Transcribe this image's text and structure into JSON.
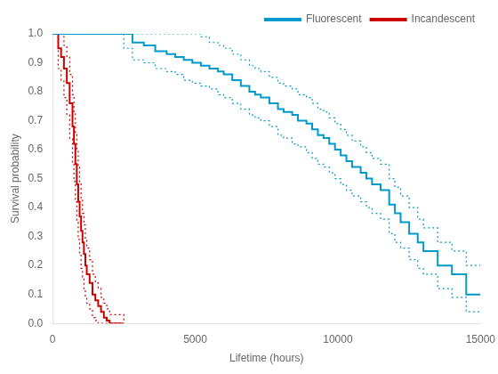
{
  "chart_data": {
    "type": "step",
    "xlabel": "Lifetime (hours)",
    "ylabel": "Survival probability",
    "xlim": [
      0,
      15000
    ],
    "ylim": [
      0,
      1
    ],
    "xticks": [
      0,
      5000,
      10000,
      15000
    ],
    "yticks": [
      {
        "value": 0,
        "label": "0.0"
      },
      0.1,
      0.2,
      0.3,
      0.4,
      0.5,
      0.6,
      0.7,
      0.8,
      0.9,
      {
        "value": 1.0,
        "label": "1.0"
      }
    ],
    "grid": false,
    "legend": "upper right",
    "series": [
      {
        "name": "Fluorescent",
        "color": "#0099CC",
        "x": [
          0,
          2500,
          2800,
          3200,
          3600,
          4000,
          4300,
          4600,
          4900,
          5200,
          5500,
          5800,
          6000,
          6300,
          6600,
          6900,
          7100,
          7300,
          7600,
          7900,
          8100,
          8400,
          8600,
          8900,
          9100,
          9300,
          9500,
          9700,
          9900,
          10100,
          10300,
          10500,
          10800,
          11000,
          11200,
          11500,
          11800,
          12000,
          12200,
          12500,
          12800,
          13000,
          13500,
          14000,
          14500,
          15000
        ],
        "values": [
          1.0,
          1.0,
          0.97,
          0.96,
          0.94,
          0.93,
          0.92,
          0.91,
          0.9,
          0.89,
          0.88,
          0.87,
          0.86,
          0.84,
          0.82,
          0.8,
          0.79,
          0.78,
          0.76,
          0.74,
          0.73,
          0.72,
          0.7,
          0.69,
          0.67,
          0.65,
          0.64,
          0.62,
          0.6,
          0.58,
          0.56,
          0.54,
          0.52,
          0.5,
          0.48,
          0.46,
          0.41,
          0.38,
          0.35,
          0.31,
          0.28,
          0.25,
          0.2,
          0.17,
          0.1,
          0.1
        ],
        "ci_lo": [
          1.0,
          0.95,
          0.91,
          0.9,
          0.88,
          0.87,
          0.86,
          0.84,
          0.83,
          0.82,
          0.81,
          0.79,
          0.78,
          0.76,
          0.74,
          0.72,
          0.71,
          0.7,
          0.68,
          0.65,
          0.64,
          0.62,
          0.61,
          0.59,
          0.57,
          0.55,
          0.54,
          0.52,
          0.5,
          0.48,
          0.46,
          0.44,
          0.42,
          0.4,
          0.38,
          0.36,
          0.31,
          0.28,
          0.26,
          0.22,
          0.19,
          0.17,
          0.12,
          0.09,
          0.04,
          0.04
        ],
        "ci_hi": [
          1.0,
          1.0,
          1.0,
          1.0,
          1.0,
          1.0,
          1.0,
          1.0,
          1.0,
          0.99,
          0.97,
          0.96,
          0.95,
          0.93,
          0.91,
          0.89,
          0.88,
          0.87,
          0.85,
          0.83,
          0.82,
          0.81,
          0.79,
          0.78,
          0.76,
          0.74,
          0.73,
          0.71,
          0.69,
          0.67,
          0.65,
          0.63,
          0.61,
          0.59,
          0.57,
          0.55,
          0.5,
          0.47,
          0.44,
          0.4,
          0.36,
          0.33,
          0.28,
          0.25,
          0.2,
          0.2
        ]
      },
      {
        "name": "Incandescent",
        "color": "#CC0000",
        "x": [
          0,
          200,
          300,
          400,
          500,
          600,
          700,
          750,
          800,
          850,
          900,
          950,
          1000,
          1050,
          1100,
          1150,
          1200,
          1300,
          1400,
          1500,
          1600,
          1700,
          1800,
          1900,
          2000,
          2500
        ],
        "values": [
          1.0,
          0.95,
          0.92,
          0.88,
          0.83,
          0.76,
          0.68,
          0.62,
          0.55,
          0.48,
          0.42,
          0.37,
          0.32,
          0.28,
          0.24,
          0.2,
          0.17,
          0.14,
          0.1,
          0.08,
          0.06,
          0.04,
          0.02,
          0.01,
          0.0,
          0.0
        ],
        "ci_lo": [
          1.0,
          0.88,
          0.84,
          0.78,
          0.72,
          0.64,
          0.55,
          0.49,
          0.42,
          0.35,
          0.29,
          0.24,
          0.19,
          0.16,
          0.12,
          0.09,
          0.07,
          0.05,
          0.02,
          0.01,
          0.0,
          0.0,
          0.0,
          0.0,
          0.0,
          0.0
        ],
        "ci_hi": [
          1.0,
          1.0,
          1.0,
          0.96,
          0.92,
          0.86,
          0.79,
          0.73,
          0.66,
          0.6,
          0.54,
          0.49,
          0.43,
          0.38,
          0.34,
          0.29,
          0.26,
          0.22,
          0.17,
          0.14,
          0.12,
          0.09,
          0.07,
          0.05,
          0.03,
          0.01
        ]
      }
    ]
  }
}
